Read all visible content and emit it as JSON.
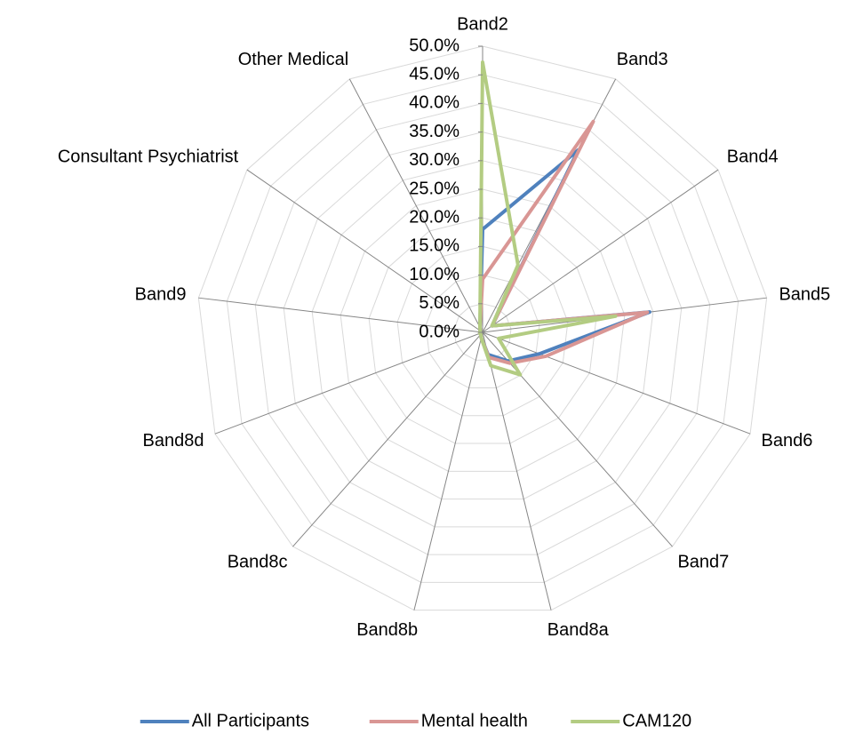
{
  "chart_data": {
    "type": "radar",
    "categories": [
      "Band2",
      "Band3",
      "Band4",
      "Band5",
      "Band6",
      "Band7",
      "Band8a",
      "Band8b",
      "Band8c",
      "Band8d",
      "Band9",
      "Consultant Psychiatrist",
      "Other Medical"
    ],
    "ylim": [
      0,
      50
    ],
    "yticks": [
      {
        "value": 0,
        "label": "0.0%"
      },
      {
        "value": 5,
        "label": "5.0%"
      },
      {
        "value": 10,
        "label": "10.0%"
      },
      {
        "value": 15,
        "label": "15.0%"
      },
      {
        "value": 20,
        "label": "20.0%"
      },
      {
        "value": 25,
        "label": "25.0%"
      },
      {
        "value": 30,
        "label": "30.0%"
      },
      {
        "value": 35,
        "label": "35.0%"
      },
      {
        "value": 40,
        "label": "40.0%"
      },
      {
        "value": 45,
        "label": "45.0%"
      },
      {
        "value": 50,
        "label": "50.0%"
      }
    ],
    "grid": true,
    "legend": "bottom",
    "series": [
      {
        "name": "All Participants",
        "color": "#4f81bd",
        "values": [
          18,
          36,
          2,
          29.4,
          10.6,
          6.7,
          4,
          1,
          0.5,
          0.5,
          0.5,
          0.5,
          1
        ]
      },
      {
        "name": "Mental health",
        "color": "#d99694",
        "values": [
          9.3,
          41.6,
          2,
          29,
          11.8,
          7.2,
          4.5,
          1,
          0.5,
          0.5,
          0.5,
          0.5,
          1
        ]
      },
      {
        "name": "CAM120",
        "color": "#b3cc82",
        "values": [
          47.2,
          13.3,
          2,
          23.4,
          3,
          9.9,
          6,
          1,
          0.5,
          0.5,
          0.5,
          0.5,
          1
        ]
      }
    ]
  }
}
